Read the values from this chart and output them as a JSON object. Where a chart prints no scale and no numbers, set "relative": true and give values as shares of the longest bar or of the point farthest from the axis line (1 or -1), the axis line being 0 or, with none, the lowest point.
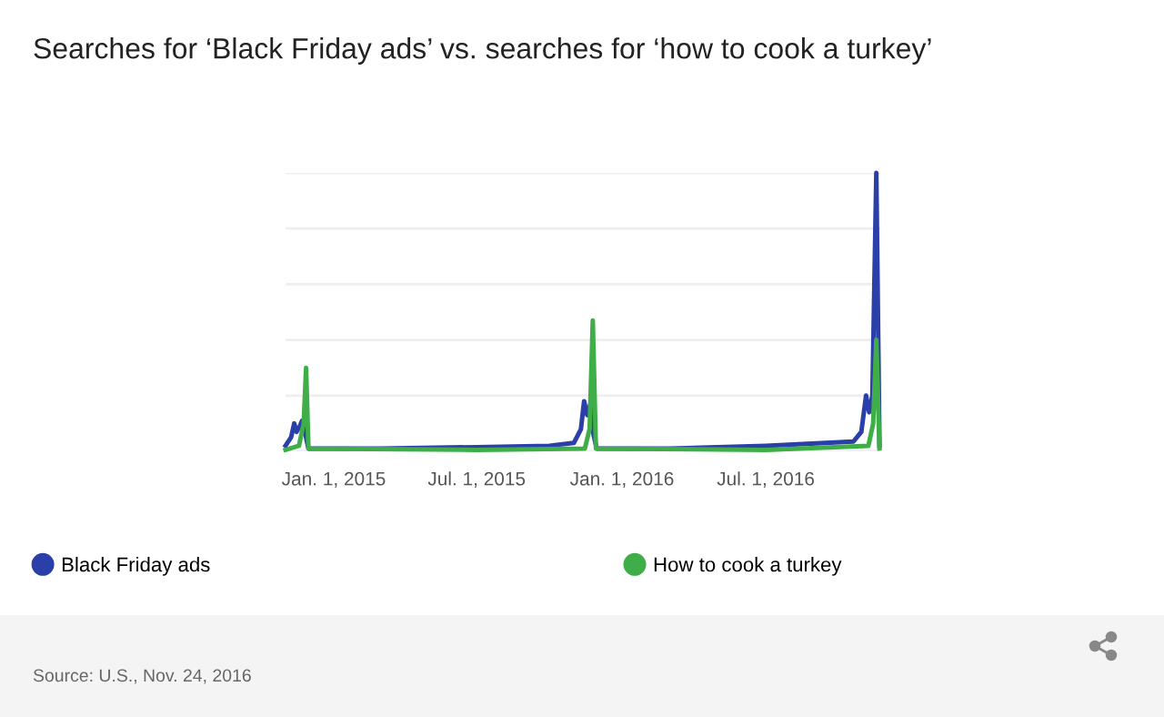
{
  "chart_data": {
    "type": "line",
    "title": "Searches for ‘Black Friday ads’ vs. searches for ‘how to cook a turkey’",
    "relative": true,
    "xlim": [
      "2014-11-01",
      "2016-11-23"
    ],
    "xticks": [
      {
        "value": "2015-01-01",
        "label": "Jan. 1, 2015"
      },
      {
        "value": "2015-07-01",
        "label": "Jul. 1, 2015"
      },
      {
        "value": "2016-01-01",
        "label": "Jan. 1, 2016"
      },
      {
        "value": "2016-07-01",
        "label": "Jul. 1, 2016"
      }
    ],
    "tick_labels": "x",
    "grid": "y",
    "legend": "bottom",
    "marker": "none",
    "line_style": "solid",
    "annotations": [
      "Source: U.S., Nov. 24, 2016"
    ],
    "series": [
      {
        "name": "Black Friday ads",
        "color": "#2a3fa8",
        "x": [
          "2014-11-01",
          "2014-11-08",
          "2014-11-12",
          "2014-11-15",
          "2014-11-19",
          "2014-11-22",
          "2014-11-27",
          "2014-11-30",
          "2015-03-01",
          "2015-07-01",
          "2015-10-01",
          "2015-11-01",
          "2015-11-10",
          "2015-11-14",
          "2015-11-18",
          "2015-11-22",
          "2015-11-26",
          "2015-11-30",
          "2016-03-01",
          "2016-07-01",
          "2016-10-20",
          "2016-10-30",
          "2016-11-05",
          "2016-11-09",
          "2016-11-13",
          "2016-11-18",
          "2016-11-22"
        ],
        "values": [
          0.02,
          0.05,
          0.1,
          0.07,
          0.09,
          0.11,
          0.05,
          0.01,
          0.01,
          0.015,
          0.02,
          0.03,
          0.08,
          0.18,
          0.13,
          0.17,
          0.06,
          0.01,
          0.01,
          0.02,
          0.035,
          0.07,
          0.2,
          0.14,
          0.2,
          1.0,
          0.02
        ]
      },
      {
        "name": "How to cook a turkey",
        "color": "#3fae49",
        "x": [
          "2014-11-01",
          "2014-11-18",
          "2014-11-24",
          "2014-11-27",
          "2014-11-30",
          "2015-07-01",
          "2015-11-15",
          "2015-11-21",
          "2015-11-25",
          "2015-11-29",
          "2016-07-01",
          "2016-11-08",
          "2016-11-14",
          "2016-11-18",
          "2016-11-22"
        ],
        "values": [
          0.005,
          0.02,
          0.1,
          0.3,
          0.01,
          0.005,
          0.01,
          0.08,
          0.47,
          0.01,
          0.005,
          0.02,
          0.1,
          0.4,
          0.01
        ]
      }
    ]
  }
}
